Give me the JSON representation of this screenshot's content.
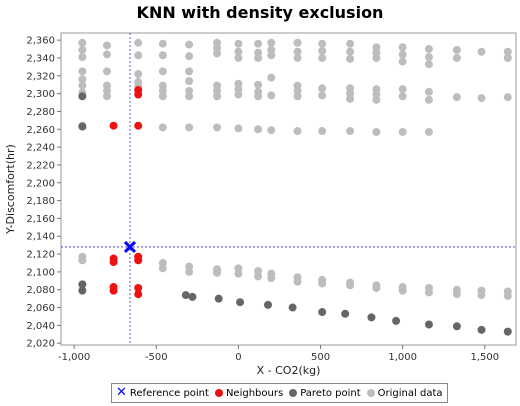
{
  "chart_data": {
    "type": "scatter",
    "title": "KNN with density exclusion",
    "xlabel": "X - CO2(kg)",
    "ylabel": "Y-Discomfort(hr)",
    "xlim": [
      -1080,
      1690
    ],
    "ylim": [
      2018,
      2368
    ],
    "xticks": [
      -1000,
      -500,
      0,
      500,
      1000,
      1500
    ],
    "xtick_labels": [
      "-1,000",
      "-500",
      "0",
      "500",
      "1,000",
      "1,500"
    ],
    "yticks": [
      2020,
      2040,
      2060,
      2080,
      2100,
      2120,
      2140,
      2160,
      2180,
      2200,
      2220,
      2240,
      2260,
      2280,
      2300,
      2320,
      2340,
      2360
    ],
    "ytick_labels": [
      "2,020",
      "2,040",
      "2,060",
      "2,080",
      "2,100",
      "2,120",
      "2,140",
      "2,160",
      "2,180",
      "2,200",
      "2,220",
      "2,240",
      "2,260",
      "2,280",
      "2,300",
      "2,320",
      "2,340",
      "2,360"
    ],
    "grid": false,
    "legend_position": "bottom",
    "crosshair": true,
    "series": [
      {
        "name": "Original data",
        "color": "#bdbdbd",
        "marker": "circle",
        "points": [
          [
            -950,
            2357
          ],
          [
            -950,
            2349
          ],
          [
            -950,
            2341
          ],
          [
            -950,
            2325
          ],
          [
            -950,
            2316
          ],
          [
            -950,
            2309
          ],
          [
            -950,
            2301
          ],
          [
            -950,
            2264
          ],
          [
            -950,
            2117
          ],
          [
            -950,
            2113
          ],
          [
            -800,
            2354
          ],
          [
            -800,
            2344
          ],
          [
            -800,
            2325
          ],
          [
            -800,
            2309
          ],
          [
            -800,
            2303
          ],
          [
            -800,
            2297
          ],
          [
            -610,
            2357
          ],
          [
            -610,
            2343
          ],
          [
            -610,
            2322
          ],
          [
            -610,
            2313
          ],
          [
            -610,
            2308
          ],
          [
            -460,
            2356
          ],
          [
            -460,
            2343
          ],
          [
            -460,
            2325
          ],
          [
            -460,
            2309
          ],
          [
            -460,
            2303
          ],
          [
            -460,
            2297
          ],
          [
            -460,
            2262
          ],
          [
            -460,
            2110
          ],
          [
            -460,
            2104
          ],
          [
            -300,
            2355
          ],
          [
            -300,
            2342
          ],
          [
            -300,
            2325
          ],
          [
            -300,
            2314
          ],
          [
            -300,
            2303
          ],
          [
            -300,
            2297
          ],
          [
            -300,
            2262
          ],
          [
            -300,
            2106
          ],
          [
            -300,
            2100
          ],
          [
            -130,
            2357
          ],
          [
            -130,
            2351
          ],
          [
            -130,
            2345
          ],
          [
            -130,
            2309
          ],
          [
            -130,
            2303
          ],
          [
            -130,
            2297
          ],
          [
            -130,
            2262
          ],
          [
            -130,
            2103
          ],
          [
            -130,
            2099
          ],
          [
            0,
            2356
          ],
          [
            0,
            2347
          ],
          [
            0,
            2340
          ],
          [
            0,
            2311
          ],
          [
            0,
            2305
          ],
          [
            0,
            2299
          ],
          [
            0,
            2261
          ],
          [
            0,
            2104
          ],
          [
            0,
            2098
          ],
          [
            120,
            2356
          ],
          [
            120,
            2346
          ],
          [
            120,
            2340
          ],
          [
            120,
            2310
          ],
          [
            120,
            2302
          ],
          [
            120,
            2297
          ],
          [
            120,
            2260
          ],
          [
            120,
            2101
          ],
          [
            120,
            2095
          ],
          [
            200,
            2357
          ],
          [
            200,
            2349
          ],
          [
            200,
            2343
          ],
          [
            200,
            2318
          ],
          [
            200,
            2298
          ],
          [
            200,
            2259
          ],
          [
            200,
            2098
          ],
          [
            200,
            2093
          ],
          [
            360,
            2357
          ],
          [
            360,
            2347
          ],
          [
            360,
            2340
          ],
          [
            360,
            2309
          ],
          [
            360,
            2303
          ],
          [
            360,
            2297
          ],
          [
            360,
            2258
          ],
          [
            360,
            2094
          ],
          [
            360,
            2089
          ],
          [
            510,
            2356
          ],
          [
            510,
            2348
          ],
          [
            510,
            2340
          ],
          [
            510,
            2306
          ],
          [
            510,
            2298
          ],
          [
            510,
            2258
          ],
          [
            510,
            2091
          ],
          [
            510,
            2087
          ],
          [
            680,
            2356
          ],
          [
            680,
            2347
          ],
          [
            680,
            2339
          ],
          [
            680,
            2306
          ],
          [
            680,
            2300
          ],
          [
            680,
            2294
          ],
          [
            680,
            2258
          ],
          [
            680,
            2088
          ],
          [
            680,
            2085
          ],
          [
            840,
            2352
          ],
          [
            840,
            2346
          ],
          [
            840,
            2340
          ],
          [
            840,
            2305
          ],
          [
            840,
            2299
          ],
          [
            840,
            2293
          ],
          [
            840,
            2257
          ],
          [
            840,
            2085
          ],
          [
            840,
            2082
          ],
          [
            1000,
            2352
          ],
          [
            1000,
            2344
          ],
          [
            1000,
            2336
          ],
          [
            1000,
            2305
          ],
          [
            1000,
            2297
          ],
          [
            1000,
            2257
          ],
          [
            1000,
            2083
          ],
          [
            1000,
            2079
          ],
          [
            1160,
            2350
          ],
          [
            1160,
            2341
          ],
          [
            1160,
            2333
          ],
          [
            1160,
            2302
          ],
          [
            1160,
            2293
          ],
          [
            1160,
            2257
          ],
          [
            1160,
            2082
          ],
          [
            1160,
            2077
          ],
          [
            1330,
            2349
          ],
          [
            1330,
            2340
          ],
          [
            1330,
            2296
          ],
          [
            1330,
            2080
          ],
          [
            1330,
            2075
          ],
          [
            1480,
            2347
          ],
          [
            1480,
            2295
          ],
          [
            1480,
            2079
          ],
          [
            1480,
            2074
          ],
          [
            1640,
            2347
          ],
          [
            1640,
            2340
          ],
          [
            1640,
            2296
          ],
          [
            1640,
            2078
          ],
          [
            1640,
            2073
          ]
        ]
      },
      {
        "name": "Pareto point",
        "color": "#666666",
        "marker": "circle",
        "points": [
          [
            -950,
            2297
          ],
          [
            -950,
            2263
          ],
          [
            -950,
            2086
          ],
          [
            -950,
            2079
          ],
          [
            -320,
            2074
          ],
          [
            -280,
            2072
          ],
          [
            -120,
            2070
          ],
          [
            10,
            2066
          ],
          [
            180,
            2063
          ],
          [
            330,
            2060
          ],
          [
            510,
            2055
          ],
          [
            650,
            2053
          ],
          [
            810,
            2049
          ],
          [
            960,
            2045
          ],
          [
            1160,
            2041
          ],
          [
            1330,
            2039
          ],
          [
            1480,
            2035
          ],
          [
            1640,
            2033
          ]
        ]
      },
      {
        "name": "Neighbours",
        "color": "#ee1111",
        "marker": "circle",
        "points": [
          [
            -760,
            2264
          ],
          [
            -760,
            2115
          ],
          [
            -760,
            2111
          ],
          [
            -760,
            2083
          ],
          [
            -760,
            2079
          ],
          [
            -610,
            2304
          ],
          [
            -610,
            2299
          ],
          [
            -610,
            2264
          ],
          [
            -610,
            2117
          ],
          [
            -610,
            2113
          ],
          [
            -610,
            2082
          ],
          [
            -610,
            2075
          ]
        ]
      },
      {
        "name": "Reference point",
        "color": "#0000ff",
        "marker": "x",
        "points": [
          [
            -660,
            2128
          ]
        ]
      }
    ]
  },
  "legend": {
    "reference_label": "Reference point",
    "neighbours_label": "Neighbours",
    "pareto_label": "Pareto point",
    "original_label": "Original data"
  }
}
